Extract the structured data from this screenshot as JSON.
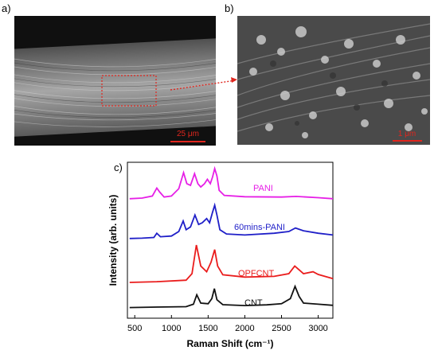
{
  "panels": {
    "a": {
      "label": "a)",
      "scalebar": "25 μm",
      "colors": {
        "marker": "#e0261e"
      }
    },
    "b": {
      "label": "b)",
      "scalebar": "1 μm",
      "colors": {
        "marker": "#e0261e"
      }
    },
    "c": {
      "label": "c)"
    }
  },
  "chart_data": {
    "type": "line",
    "title": "",
    "xlabel": "Raman Shift (cm⁻¹)",
    "ylabel": "Intensity (arb. units)",
    "xlim": [
      400,
      3200
    ],
    "xticks": [
      500,
      1000,
      1500,
      2000,
      2500,
      3000
    ],
    "ytick_labels": "none",
    "grid": false,
    "legend": "inline labels beside curves",
    "series": [
      {
        "name": "PANI",
        "color": "#e61fe6",
        "points": [
          [
            430,
            0.1
          ],
          [
            600,
            0.12
          ],
          [
            740,
            0.18
          ],
          [
            800,
            0.42
          ],
          [
            840,
            0.3
          ],
          [
            900,
            0.15
          ],
          [
            1000,
            0.18
          ],
          [
            1100,
            0.4
          ],
          [
            1165,
            0.88
          ],
          [
            1210,
            0.55
          ],
          [
            1260,
            0.5
          ],
          [
            1315,
            0.85
          ],
          [
            1360,
            0.55
          ],
          [
            1400,
            0.45
          ],
          [
            1450,
            0.55
          ],
          [
            1490,
            0.68
          ],
          [
            1530,
            0.55
          ],
          [
            1560,
            0.75
          ],
          [
            1590,
            1.0
          ],
          [
            1620,
            0.78
          ],
          [
            1650,
            0.35
          ],
          [
            1720,
            0.2
          ],
          [
            2000,
            0.16
          ],
          [
            2500,
            0.15
          ],
          [
            2700,
            0.17
          ],
          [
            3000,
            0.13
          ],
          [
            3200,
            0.1
          ]
        ]
      },
      {
        "name": "60mins-PANI",
        "color": "#1f1fc8",
        "points": [
          [
            430,
            0.05
          ],
          [
            600,
            0.06
          ],
          [
            760,
            0.08
          ],
          [
            800,
            0.2
          ],
          [
            850,
            0.1
          ],
          [
            1000,
            0.12
          ],
          [
            1100,
            0.25
          ],
          [
            1160,
            0.55
          ],
          [
            1200,
            0.3
          ],
          [
            1260,
            0.38
          ],
          [
            1320,
            0.72
          ],
          [
            1370,
            0.45
          ],
          [
            1420,
            0.5
          ],
          [
            1480,
            0.62
          ],
          [
            1520,
            0.5
          ],
          [
            1560,
            0.8
          ],
          [
            1590,
            1.0
          ],
          [
            1620,
            0.72
          ],
          [
            1660,
            0.3
          ],
          [
            1750,
            0.18
          ],
          [
            2000,
            0.15
          ],
          [
            2400,
            0.2
          ],
          [
            2600,
            0.25
          ],
          [
            2690,
            0.35
          ],
          [
            2800,
            0.27
          ],
          [
            3000,
            0.2
          ],
          [
            3200,
            0.15
          ]
        ]
      },
      {
        "name": "OPFCNT",
        "color": "#ea1c1c",
        "points": [
          [
            430,
            0.02
          ],
          [
            800,
            0.04
          ],
          [
            1200,
            0.08
          ],
          [
            1280,
            0.25
          ],
          [
            1340,
            1.0
          ],
          [
            1400,
            0.45
          ],
          [
            1480,
            0.3
          ],
          [
            1540,
            0.55
          ],
          [
            1590,
            0.88
          ],
          [
            1630,
            0.45
          ],
          [
            1700,
            0.22
          ],
          [
            2000,
            0.16
          ],
          [
            2400,
            0.18
          ],
          [
            2600,
            0.25
          ],
          [
            2680,
            0.45
          ],
          [
            2740,
            0.35
          ],
          [
            2800,
            0.25
          ],
          [
            2930,
            0.3
          ],
          [
            3000,
            0.23
          ],
          [
            3200,
            0.12
          ]
        ]
      },
      {
        "name": "CNT",
        "color": "#111111",
        "points": [
          [
            430,
            0.05
          ],
          [
            800,
            0.07
          ],
          [
            1200,
            0.09
          ],
          [
            1300,
            0.2
          ],
          [
            1345,
            0.62
          ],
          [
            1400,
            0.25
          ],
          [
            1500,
            0.22
          ],
          [
            1550,
            0.45
          ],
          [
            1585,
            0.9
          ],
          [
            1620,
            0.4
          ],
          [
            1700,
            0.18
          ],
          [
            2000,
            0.14
          ],
          [
            2300,
            0.17
          ],
          [
            2500,
            0.22
          ],
          [
            2620,
            0.45
          ],
          [
            2685,
            1.0
          ],
          [
            2740,
            0.55
          ],
          [
            2800,
            0.25
          ],
          [
            3000,
            0.2
          ],
          [
            3200,
            0.15
          ]
        ]
      }
    ]
  }
}
